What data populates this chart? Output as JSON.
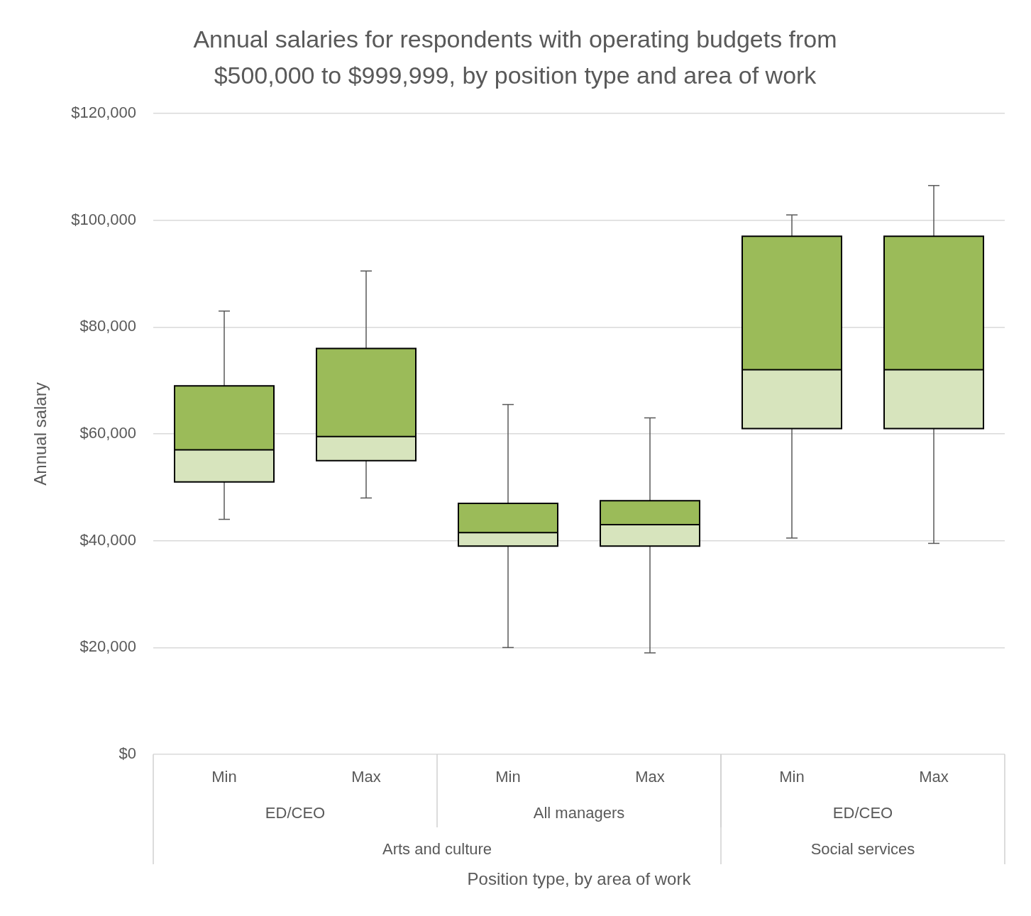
{
  "chart_data": {
    "type": "box",
    "title": "Annual salaries for respondents with operating budgets from $500,000 to $999,999, by position type and area of work",
    "xlabel": "Position type, by area of work",
    "ylabel": "Annual salary",
    "categories": [
      "Min",
      "Max",
      "Min",
      "Max",
      "Min",
      "Max"
    ],
    "annotations": [
      "ED/CEO",
      "All managers",
      "ED/CEO",
      "Arts and culture",
      "Social services"
    ],
    "boxes": [
      {
        "low": 44000,
        "q1": 51000,
        "median": 57000,
        "q3": 69000,
        "high": 83000
      },
      {
        "low": 48000,
        "q1": 55000,
        "median": 59500,
        "q3": 76000,
        "high": 90500
      },
      {
        "low": 20000,
        "q1": 39000,
        "median": 41500,
        "q3": 47000,
        "high": 65500
      },
      {
        "low": 19000,
        "q1": 39000,
        "median": 43000,
        "q3": 47500,
        "high": 63000
      },
      {
        "low": 40500,
        "q1": 61000,
        "median": 72000,
        "q3": 97000,
        "high": 101000
      },
      {
        "low": 39500,
        "q1": 61000,
        "median": 72000,
        "q3": 97000,
        "high": 106500
      }
    ],
    "color": "#9bbb59",
    "ylim": [
      0,
      120000
    ],
    "yticks": [
      {
        "value": 0,
        "label": "$0"
      },
      {
        "value": 20000,
        "label": "$20,000"
      },
      {
        "value": 40000,
        "label": "$40,000"
      },
      {
        "value": 60000,
        "label": "$60,000"
      },
      {
        "value": 80000,
        "label": "$80,000"
      },
      {
        "value": 100000,
        "label": "$100,000"
      },
      {
        "value": 120000,
        "label": "$120,000"
      }
    ],
    "grid": "y"
  }
}
